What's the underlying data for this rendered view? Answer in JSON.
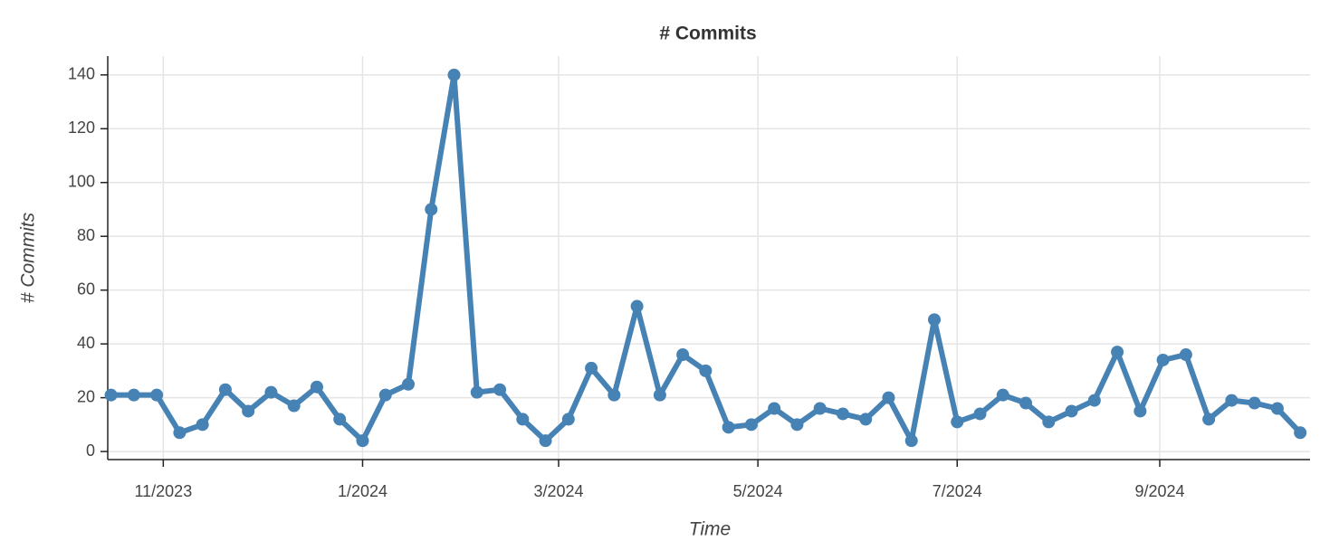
{
  "chart_data": {
    "type": "line",
    "title": "# Commits",
    "x_label": "Time",
    "y_label": "# Commits",
    "x": [
      "2023-10-16",
      "2023-10-23",
      "2023-10-30",
      "2023-11-06",
      "2023-11-13",
      "2023-11-20",
      "2023-11-27",
      "2023-12-04",
      "2023-12-11",
      "2023-12-18",
      "2023-12-25",
      "2024-01-01",
      "2024-01-08",
      "2024-01-15",
      "2024-01-22",
      "2024-01-29",
      "2024-02-05",
      "2024-02-12",
      "2024-02-19",
      "2024-02-26",
      "2024-03-04",
      "2024-03-11",
      "2024-03-18",
      "2024-03-25",
      "2024-04-01",
      "2024-04-08",
      "2024-04-15",
      "2024-04-22",
      "2024-04-29",
      "2024-05-06",
      "2024-05-13",
      "2024-05-20",
      "2024-05-27",
      "2024-06-03",
      "2024-06-10",
      "2024-06-17",
      "2024-06-24",
      "2024-07-01",
      "2024-07-08",
      "2024-07-15",
      "2024-07-22",
      "2024-07-29",
      "2024-08-05",
      "2024-08-12",
      "2024-08-19",
      "2024-08-26",
      "2024-09-02",
      "2024-09-09",
      "2024-09-16",
      "2024-09-23",
      "2024-09-30",
      "2024-10-07",
      "2024-10-14"
    ],
    "series": [
      {
        "name": "# Commits",
        "color": "#4682b4",
        "values": [
          21,
          21,
          21,
          7,
          10,
          23,
          15,
          22,
          17,
          24,
          12,
          4,
          21,
          25,
          90,
          140,
          22,
          23,
          12,
          4,
          12,
          31,
          21,
          54,
          21,
          36,
          30,
          9,
          10,
          16,
          10,
          16,
          14,
          12,
          20,
          4,
          49,
          11,
          14,
          21,
          18,
          11,
          15,
          19,
          37,
          15,
          34,
          36,
          12,
          19,
          18,
          16,
          7
        ]
      }
    ],
    "xlim": [
      "2023-10-15",
      "2024-10-17"
    ],
    "xticks": [
      {
        "value": "2023-11-01",
        "label": "11/2023"
      },
      {
        "value": "2024-01-01",
        "label": "1/2024"
      },
      {
        "value": "2024-03-01",
        "label": "3/2024"
      },
      {
        "value": "2024-05-01",
        "label": "5/2024"
      },
      {
        "value": "2024-07-01",
        "label": "7/2024"
      },
      {
        "value": "2024-09-01",
        "label": "9/2024"
      }
    ],
    "ylim": [
      -3,
      147
    ],
    "yticks": [
      0,
      20,
      40,
      60,
      80,
      100,
      120,
      140
    ],
    "grid": true
  }
}
